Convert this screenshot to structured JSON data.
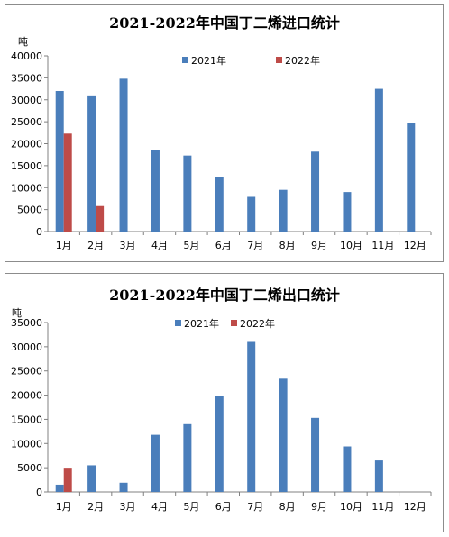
{
  "chart_data": [
    {
      "type": "bar",
      "title": "2021-2022年中国丁二烯进口统计",
      "ylabel": "吨",
      "ylim": [
        0,
        40000
      ],
      "yticks": [
        "0",
        "5000",
        "10000",
        "15000",
        "20000",
        "25000",
        "30000",
        "35000",
        "40000"
      ],
      "categories": [
        "1月",
        "2月",
        "3月",
        "4月",
        "5月",
        "6月",
        "7月",
        "8月",
        "9月",
        "10月",
        "11月",
        "12月"
      ],
      "series": [
        {
          "name": "2021年",
          "color": "#4a7ebb",
          "values": [
            32000,
            31000,
            34800,
            18500,
            17300,
            12400,
            7900,
            9500,
            18200,
            9000,
            32500,
            24700
          ]
        },
        {
          "name": "2022年",
          "color": "#be4b48",
          "values": [
            22300,
            5800,
            null,
            null,
            null,
            null,
            null,
            null,
            null,
            null,
            null,
            null
          ]
        }
      ],
      "legend": "top-center",
      "grid": false
    },
    {
      "type": "bar",
      "title": "2021-2022年中国丁二烯出口统计",
      "ylabel": "吨",
      "ylim": [
        0,
        35000
      ],
      "yticks": [
        "0",
        "5000",
        "10000",
        "15000",
        "20000",
        "25000",
        "30000",
        "35000"
      ],
      "categories": [
        "1月",
        "2月",
        "3月",
        "4月",
        "5月",
        "6月",
        "7月",
        "8月",
        "9月",
        "10月",
        "11月",
        "12月"
      ],
      "series": [
        {
          "name": "2021年",
          "color": "#4a7ebb",
          "values": [
            1500,
            5500,
            1900,
            11800,
            14000,
            19900,
            31000,
            23400,
            15300,
            9400,
            6500,
            null
          ]
        },
        {
          "name": "2022年",
          "color": "#be4b48",
          "values": [
            5000,
            null,
            null,
            null,
            null,
            null,
            null,
            null,
            null,
            null,
            null,
            null
          ]
        }
      ],
      "legend": "top-center",
      "grid": false
    }
  ]
}
